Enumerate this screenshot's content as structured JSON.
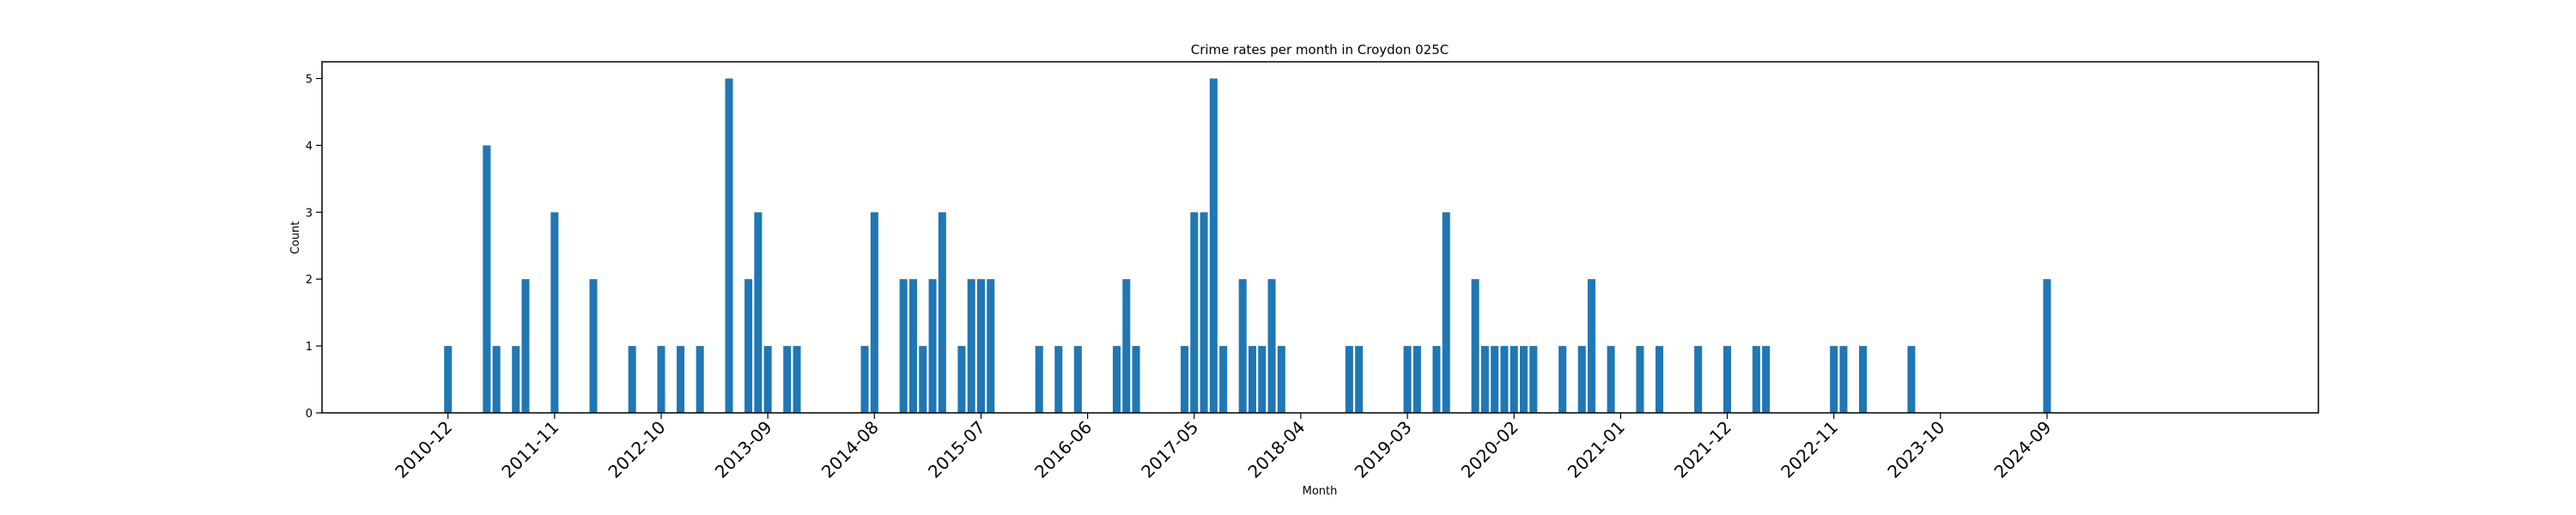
{
  "chart_data": {
    "type": "bar",
    "title": "Crime rates per month in Croydon 025C",
    "xlabel": "Month",
    "ylabel": "Count",
    "ylim": [
      0,
      5.25
    ],
    "xlim": [
      "2009-11",
      "2027-01"
    ],
    "yticks": [
      0,
      1,
      2,
      3,
      4,
      5
    ],
    "xticks": [
      "2010-12",
      "2011-11",
      "2012-10",
      "2013-09",
      "2014-08",
      "2015-07",
      "2016-06",
      "2017-05",
      "2018-04",
      "2019-03",
      "2020-02",
      "2021-01",
      "2021-12",
      "2022-11",
      "2023-10",
      "2024-09"
    ],
    "grid": false,
    "color": "#1f77b4",
    "series": [
      {
        "x": [
          "2010-12",
          "2011-04",
          "2011-05",
          "2011-07",
          "2011-08",
          "2011-11",
          "2012-03",
          "2012-07",
          "2012-10",
          "2012-12",
          "2013-02",
          "2013-05",
          "2013-07",
          "2013-08",
          "2013-09",
          "2013-11",
          "2013-12",
          "2014-07",
          "2014-08",
          "2014-11",
          "2014-12",
          "2015-01",
          "2015-02",
          "2015-03",
          "2015-05",
          "2015-06",
          "2015-07",
          "2015-08",
          "2016-01",
          "2016-03",
          "2016-05",
          "2016-09",
          "2016-10",
          "2016-11",
          "2017-04",
          "2017-05",
          "2017-06",
          "2017-07",
          "2017-08",
          "2017-10",
          "2017-11",
          "2017-12",
          "2018-01",
          "2018-02",
          "2018-09",
          "2018-10",
          "2019-03",
          "2019-04",
          "2019-06",
          "2019-07",
          "2019-10",
          "2019-11",
          "2019-12",
          "2020-01",
          "2020-02",
          "2020-03",
          "2020-04",
          "2020-07",
          "2020-09",
          "2020-10",
          "2020-12",
          "2021-03",
          "2021-05",
          "2021-09",
          "2021-12",
          "2022-03",
          "2022-04",
          "2022-11",
          "2022-12",
          "2023-02",
          "2023-07",
          "2024-09"
        ],
        "values": [
          1,
          4,
          1,
          1,
          2,
          3,
          2,
          1,
          1,
          1,
          1,
          5,
          2,
          3,
          1,
          1,
          1,
          1,
          3,
          2,
          2,
          1,
          2,
          3,
          1,
          2,
          2,
          2,
          1,
          1,
          1,
          1,
          2,
          1,
          1,
          3,
          3,
          5,
          1,
          2,
          1,
          1,
          2,
          1,
          1,
          1,
          1,
          1,
          1,
          3,
          2,
          1,
          1,
          1,
          1,
          1,
          1,
          1,
          1,
          2,
          1,
          1,
          1,
          1,
          1,
          1,
          1,
          1,
          1,
          1,
          1,
          2
        ]
      }
    ]
  }
}
